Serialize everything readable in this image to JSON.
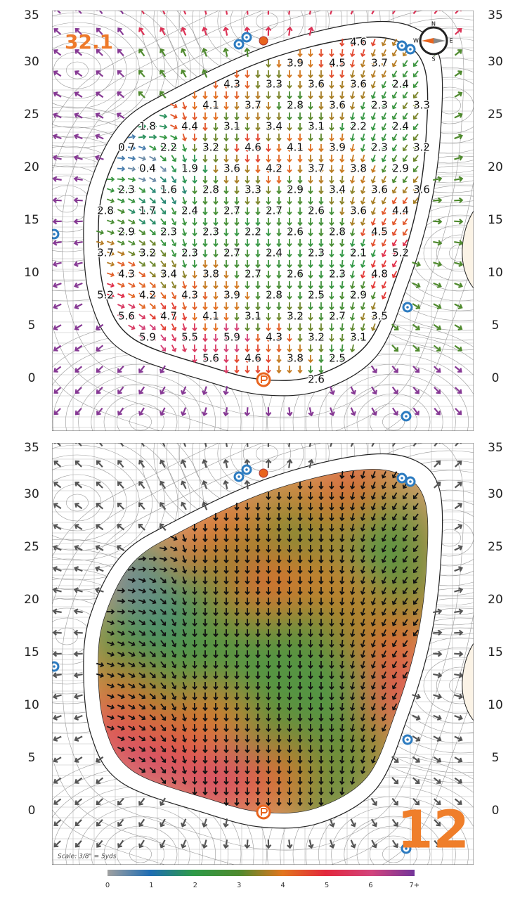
{
  "panel_top": {
    "badge": "32.1"
  },
  "panel_bottom": {
    "badge": "12",
    "scale_note": "Scale: 3/8\" = 5yds"
  },
  "axis": {
    "yticks": [
      0,
      5,
      10,
      15,
      20,
      25,
      30,
      35
    ]
  },
  "compass": [
    "N",
    "E",
    "S",
    "W"
  ],
  "slope_labels": [
    [
      "4.6"
    ],
    [
      "3.9",
      "4.5",
      "3.7"
    ],
    [
      "4.3",
      "3.3",
      "3.6",
      "3.6",
      "2.4"
    ],
    [
      "4.1",
      "3.7",
      "2.8",
      "3.6",
      "2.3",
      "3.3"
    ],
    [
      "1.8",
      "4.4",
      "3.1",
      "3.4",
      "3.1",
      "2.2",
      "2.4"
    ],
    [
      "0.7",
      "2.2",
      "3.2",
      "4.6",
      "4.1",
      "3.9",
      "2.3",
      "3.2"
    ],
    [
      "0.4",
      "1.9",
      "3.6",
      "4.2",
      "3.7",
      "3.8",
      "2.9"
    ],
    [
      "2.3",
      "1.6",
      "2.8",
      "3.3",
      "2.9",
      "3.4",
      "3.6",
      "3.6"
    ],
    [
      "2.8",
      "1.7",
      "2.4",
      "2.7",
      "2.7",
      "2.6",
      "3.6",
      "4.4"
    ],
    [
      "2.9",
      "2.3",
      "2.3",
      "2.2",
      "2.6",
      "2.8",
      "4.5"
    ],
    [
      "3.7",
      "3.2",
      "2.3",
      "2.7",
      "2.4",
      "2.3",
      "2.1",
      "5.2"
    ],
    [
      "4.3",
      "3.4",
      "3.8",
      "2.7",
      "2.6",
      "2.3",
      "4.8"
    ],
    [
      "5.2",
      "4.2",
      "4.3",
      "3.9",
      "2.8",
      "2.5",
      "2.9"
    ],
    [
      "5.6",
      "4.7",
      "4.1",
      "3.1",
      "3.2",
      "2.7",
      "3.5"
    ],
    [
      "5.9",
      "5.5",
      "5.9",
      "4.3",
      "3.2",
      "3.1"
    ],
    [
      "5.6",
      "4.6",
      "3.8",
      "2.5"
    ],
    [
      "2.6"
    ]
  ],
  "legend": {
    "labels": [
      "0",
      "1",
      "2",
      "3",
      "4",
      "5",
      "6",
      "7+"
    ]
  }
}
